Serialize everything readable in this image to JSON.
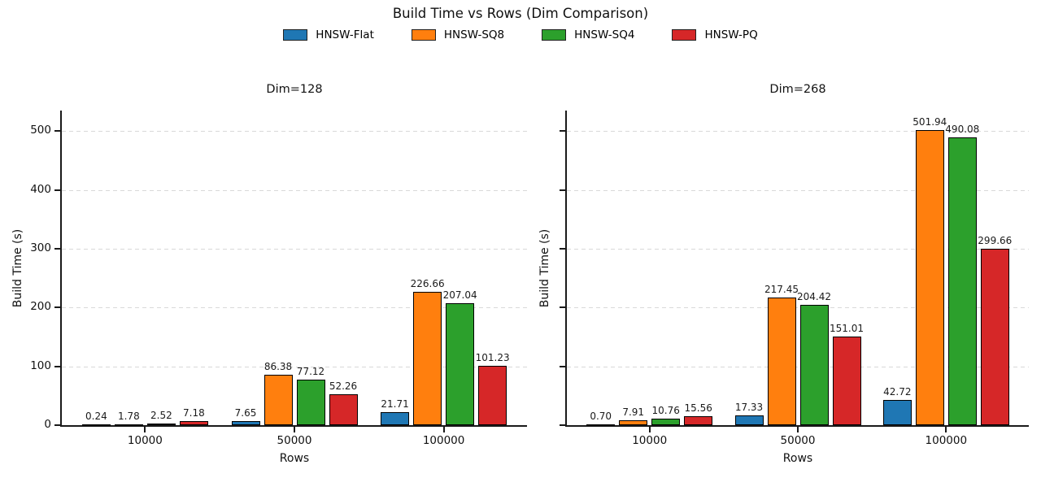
{
  "figure": {
    "title": "Build Time vs Rows (Dim Comparison)",
    "legend": [
      {
        "label": "HNSW-Flat",
        "color": "#1f77b4"
      },
      {
        "label": "HNSW-SQ8",
        "color": "#ff7f0e"
      },
      {
        "label": "HNSW-SQ4",
        "color": "#2ca02c"
      },
      {
        "label": "HNSW-PQ",
        "color": "#d62728"
      }
    ],
    "legend_position": "top-center",
    "grid": "horizontal-dashed",
    "bar_edge_color": "#000000"
  },
  "chart_data": [
    {
      "type": "bar",
      "title": "Dim=128",
      "xlabel": "Rows",
      "ylabel": "Build Time (s)",
      "categories": [
        "10000",
        "50000",
        "100000"
      ],
      "series": [
        {
          "name": "HNSW-Flat",
          "color": "#1f77b4",
          "values": [
            0.24,
            7.65,
            21.71
          ]
        },
        {
          "name": "HNSW-SQ8",
          "color": "#ff7f0e",
          "values": [
            1.78,
            86.38,
            226.66
          ]
        },
        {
          "name": "HNSW-SQ4",
          "color": "#2ca02c",
          "values": [
            2.52,
            77.12,
            207.04
          ]
        },
        {
          "name": "HNSW-PQ",
          "color": "#d62728",
          "values": [
            7.18,
            52.26,
            101.23
          ]
        }
      ],
      "yticks": [
        0,
        100,
        200,
        300,
        400,
        500
      ],
      "ylim": [
        0,
        535
      ],
      "ytick_labels_visible": true,
      "value_label_decimals": 2
    },
    {
      "type": "bar",
      "title": "Dim=268",
      "xlabel": "Rows",
      "ylabel": "Build Time (s)",
      "categories": [
        "10000",
        "50000",
        "100000"
      ],
      "series": [
        {
          "name": "HNSW-Flat",
          "color": "#1f77b4",
          "values": [
            0.7,
            17.33,
            42.72
          ]
        },
        {
          "name": "HNSW-SQ8",
          "color": "#ff7f0e",
          "values": [
            7.91,
            217.45,
            501.94
          ]
        },
        {
          "name": "HNSW-SQ4",
          "color": "#2ca02c",
          "values": [
            10.76,
            204.42,
            490.08
          ]
        },
        {
          "name": "HNSW-PQ",
          "color": "#d62728",
          "values": [
            15.56,
            151.01,
            299.66
          ]
        }
      ],
      "yticks": [
        0,
        100,
        200,
        300,
        400,
        500
      ],
      "ylim": [
        0,
        535
      ],
      "ytick_labels_visible": false,
      "value_label_decimals": 2
    }
  ]
}
